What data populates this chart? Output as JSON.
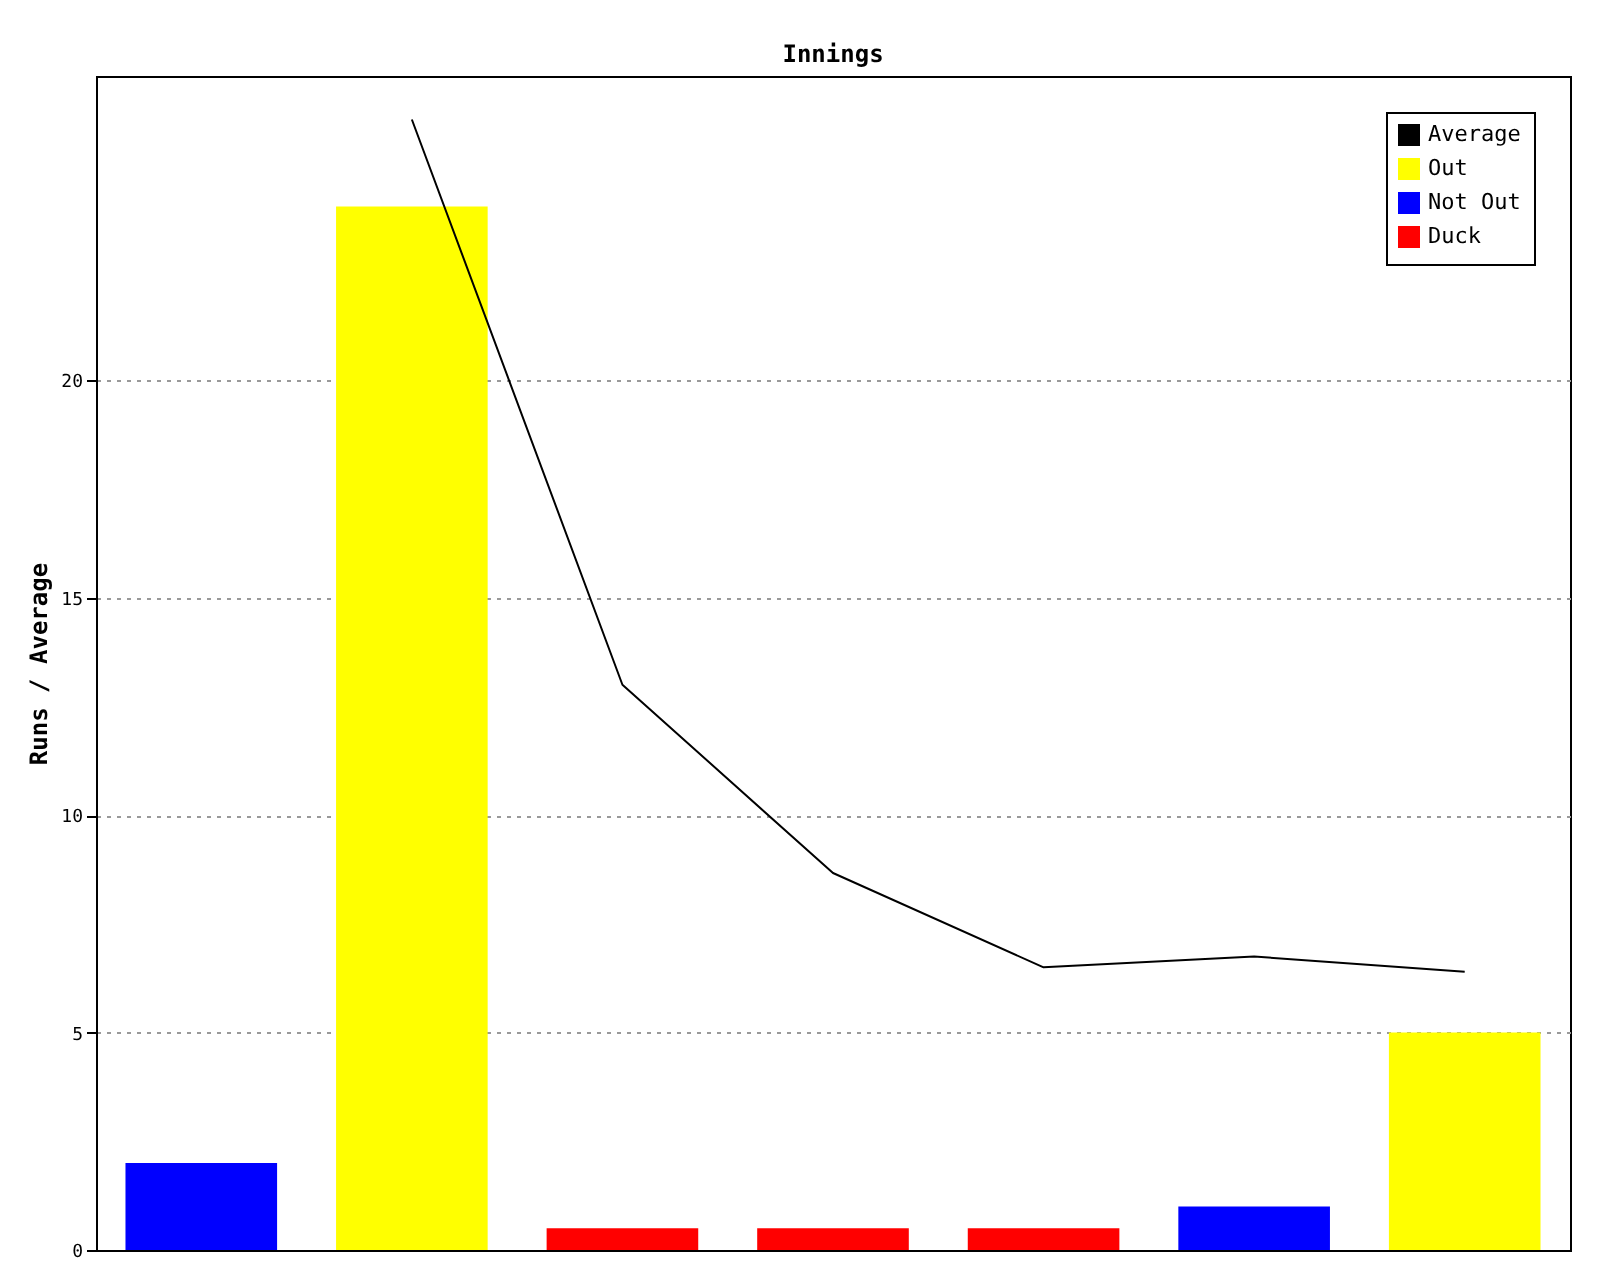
{
  "chart_data": {
    "type": "bar",
    "title": "Innings",
    "ylabel": "Runs / Average",
    "categories": [
      null,
      null,
      null,
      null,
      null,
      null,
      null
    ],
    "series": [
      {
        "name": "Average",
        "type": "line",
        "color": "#000000",
        "values": [
          null,
          26,
          13,
          8.67,
          6.5,
          6.75,
          6.4
        ]
      },
      {
        "name": "Out",
        "color": "#ffff00",
        "values": [
          null,
          24,
          null,
          null,
          null,
          null,
          5
        ]
      },
      {
        "name": "Not Out",
        "color": "#0000ff",
        "values": [
          2,
          null,
          null,
          null,
          null,
          1,
          null
        ]
      },
      {
        "name": "Duck",
        "color": "#ff0000",
        "values": [
          null,
          null,
          0.5,
          0.5,
          0.5,
          null,
          null
        ]
      }
    ],
    "ylim": [
      0,
      27
    ],
    "yticks": [
      0,
      5,
      10,
      15,
      20
    ],
    "grid": "y",
    "legend": "top right",
    "tick_labels": "y"
  }
}
